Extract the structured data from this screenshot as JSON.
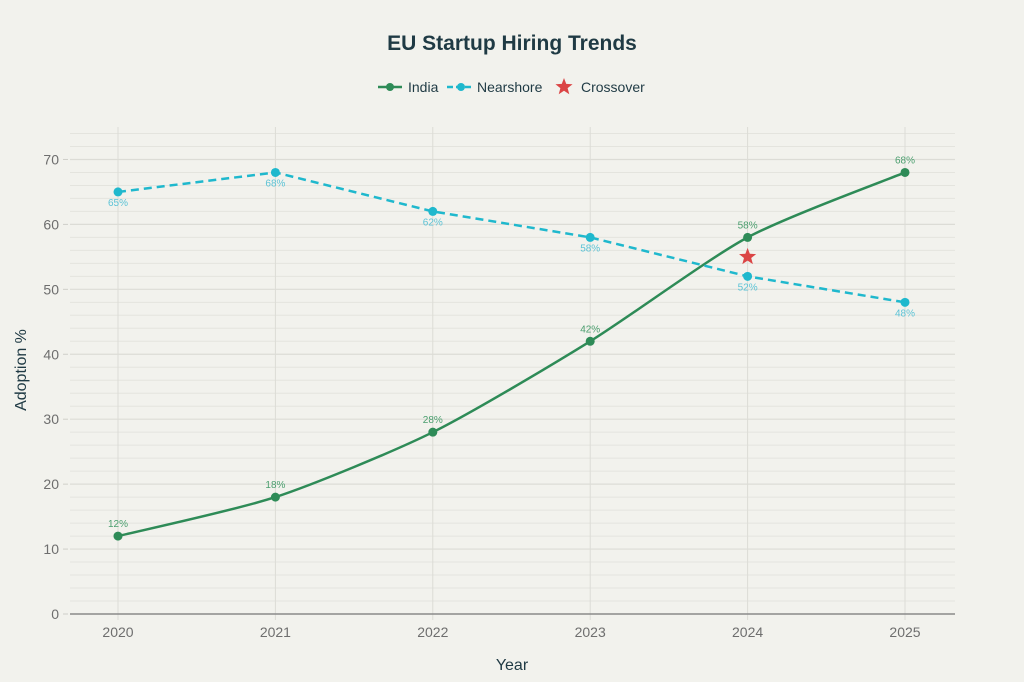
{
  "chart_data": {
    "type": "line",
    "title": "EU Startup Hiring Trends",
    "xlabel": "Year",
    "ylabel": "Adoption %",
    "x": [
      "2020",
      "2021",
      "2022",
      "2023",
      "2024",
      "2025"
    ],
    "ylim": [
      0,
      75
    ],
    "yticks": [
      0,
      10,
      20,
      30,
      40,
      50,
      60,
      70
    ],
    "ytick_labels": [
      "0",
      "10",
      "20",
      "30",
      "40",
      "50",
      "60",
      "70"
    ],
    "minor_grid_step": 2,
    "grid": true,
    "legend_position": "top-center",
    "series": [
      {
        "name": "India",
        "values": [
          12,
          18,
          28,
          42,
          58,
          68
        ],
        "labels": [
          "12%",
          "18%",
          "28%",
          "42%",
          "58%",
          "68%"
        ],
        "label_position": "above",
        "color": "#2e8b57",
        "line_style": "solid"
      },
      {
        "name": "Nearshore",
        "values": [
          65,
          68,
          62,
          58,
          52,
          48
        ],
        "labels": [
          "65%",
          "68%",
          "62%",
          "58%",
          "52%",
          "48%"
        ],
        "label_position": "below",
        "color": "#1fb8cd",
        "line_style": "dashed"
      }
    ],
    "annotations": [
      {
        "name": "Crossover",
        "type": "star-marker",
        "x": "2024",
        "y": 55,
        "color": "#db4545"
      }
    ],
    "legend": [
      "India",
      "Nearshore",
      "Crossover"
    ]
  }
}
